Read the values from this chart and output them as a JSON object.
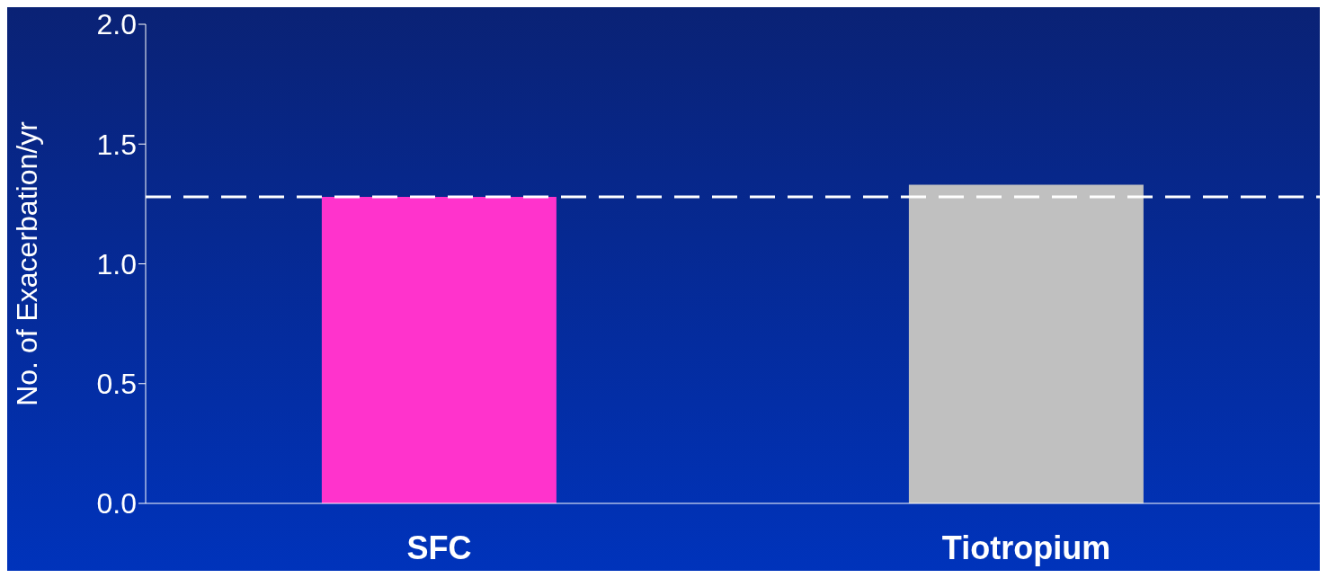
{
  "chart_data": {
    "type": "bar",
    "ylabel": "No. of Exacerbation/yr",
    "categories": [
      "SFC",
      "Tiotropium"
    ],
    "values": [
      1.28,
      1.33
    ],
    "colors": [
      "#ff33cc",
      "#c0c0c0"
    ],
    "ylim": [
      0,
      2
    ],
    "yticks": [
      {
        "value": 0,
        "label": "0.0"
      },
      {
        "value": 0.5,
        "label": "0.5"
      },
      {
        "value": 1,
        "label": "1.0"
      },
      {
        "value": 1.5,
        "label": "1.5"
      },
      {
        "value": 2,
        "label": "2.0"
      }
    ],
    "grid": false,
    "legend": false,
    "ref_lines": [
      {
        "axis": "y",
        "value": 1.28,
        "color": "#ffffff",
        "line_style": "dashed"
      }
    ]
  }
}
